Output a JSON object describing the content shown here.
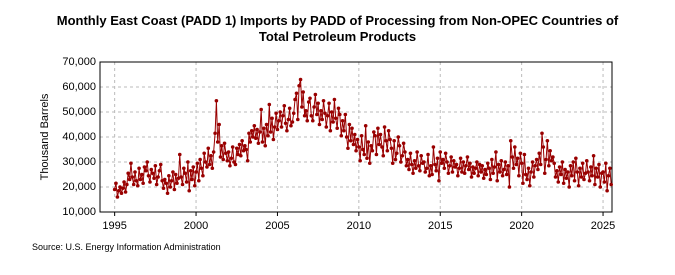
{
  "chart_data": {
    "type": "line",
    "title": "Monthly East Coast (PADD 1) Imports by PADD of Processing from Non-OPEC Countries of Total Petroleum Products",
    "y_label": "Thousand Barrels",
    "source": "Source: U.S. Energy Information Administration",
    "color": "#990000",
    "grid": true,
    "xlim": [
      1994.1,
      2025.55
    ],
    "xticks": [
      1995,
      2000,
      2005,
      2010,
      2015,
      2020,
      2025
    ],
    "ylim": [
      10000,
      70000
    ],
    "yticks": [
      {
        "value": 10000,
        "label": "10,000"
      },
      {
        "value": 20000,
        "label": "20,000"
      },
      {
        "value": 30000,
        "label": "30,000"
      },
      {
        "value": 40000,
        "label": "40,000"
      },
      {
        "value": 50000,
        "label": "50,000"
      },
      {
        "value": 60000,
        "label": "60,000"
      },
      {
        "value": 70000,
        "label": "70,000"
      }
    ],
    "x": [
      1995,
      1995.08,
      1995.17,
      1995.25,
      1995.33,
      1995.42,
      1995.5,
      1995.58,
      1995.67,
      1995.75,
      1995.83,
      1995.92,
      1996,
      1996.08,
      1996.17,
      1996.25,
      1996.33,
      1996.42,
      1996.5,
      1996.58,
      1996.67,
      1996.75,
      1996.83,
      1996.92,
      1997,
      1997.08,
      1997.17,
      1997.25,
      1997.33,
      1997.42,
      1997.5,
      1997.58,
      1997.67,
      1997.75,
      1997.83,
      1997.92,
      1998,
      1998.08,
      1998.17,
      1998.25,
      1998.33,
      1998.42,
      1998.5,
      1998.58,
      1998.67,
      1998.75,
      1998.83,
      1998.92,
      1999,
      1999.08,
      1999.17,
      1999.25,
      1999.33,
      1999.42,
      1999.5,
      1999.58,
      1999.67,
      1999.75,
      1999.83,
      1999.92,
      2000,
      2000.08,
      2000.17,
      2000.25,
      2000.33,
      2000.42,
      2000.5,
      2000.58,
      2000.67,
      2000.75,
      2000.83,
      2000.92,
      2001,
      2001.08,
      2001.17,
      2001.25,
      2001.33,
      2001.42,
      2001.5,
      2001.58,
      2001.67,
      2001.75,
      2001.83,
      2001.92,
      2002,
      2002.08,
      2002.17,
      2002.25,
      2002.33,
      2002.42,
      2002.5,
      2002.58,
      2002.67,
      2002.75,
      2002.83,
      2002.92,
      2003,
      2003.08,
      2003.17,
      2003.25,
      2003.33,
      2003.42,
      2003.5,
      2003.58,
      2003.67,
      2003.75,
      2003.83,
      2003.92,
      2004,
      2004.08,
      2004.17,
      2004.25,
      2004.33,
      2004.42,
      2004.5,
      2004.58,
      2004.67,
      2004.75,
      2004.83,
      2004.92,
      2005,
      2005.08,
      2005.17,
      2005.25,
      2005.33,
      2005.42,
      2005.5,
      2005.58,
      2005.67,
      2005.75,
      2005.83,
      2005.92,
      2006,
      2006.08,
      2006.17,
      2006.25,
      2006.33,
      2006.42,
      2006.5,
      2006.58,
      2006.67,
      2006.75,
      2006.83,
      2006.92,
      2007,
      2007.08,
      2007.17,
      2007.25,
      2007.33,
      2007.42,
      2007.5,
      2007.58,
      2007.67,
      2007.75,
      2007.83,
      2007.92,
      2008,
      2008.08,
      2008.17,
      2008.25,
      2008.33,
      2008.42,
      2008.5,
      2008.58,
      2008.67,
      2008.75,
      2008.83,
      2008.92,
      2009,
      2009.08,
      2009.17,
      2009.25,
      2009.33,
      2009.42,
      2009.5,
      2009.58,
      2009.67,
      2009.75,
      2009.83,
      2009.92,
      2010,
      2010.08,
      2010.17,
      2010.25,
      2010.33,
      2010.42,
      2010.5,
      2010.58,
      2010.67,
      2010.75,
      2010.83,
      2010.92,
      2011,
      2011.08,
      2011.17,
      2011.25,
      2011.33,
      2011.42,
      2011.5,
      2011.58,
      2011.67,
      2011.75,
      2011.83,
      2011.92,
      2012,
      2012.08,
      2012.17,
      2012.25,
      2012.33,
      2012.42,
      2012.5,
      2012.58,
      2012.67,
      2012.75,
      2012.83,
      2012.92,
      2013,
      2013.08,
      2013.17,
      2013.25,
      2013.33,
      2013.42,
      2013.5,
      2013.58,
      2013.67,
      2013.75,
      2013.83,
      2013.92,
      2014,
      2014.08,
      2014.17,
      2014.25,
      2014.33,
      2014.42,
      2014.5,
      2014.58,
      2014.67,
      2014.75,
      2014.83,
      2014.92,
      2015,
      2015.08,
      2015.17,
      2015.25,
      2015.33,
      2015.42,
      2015.5,
      2015.58,
      2015.67,
      2015.75,
      2015.83,
      2015.92,
      2016,
      2016.08,
      2016.17,
      2016.25,
      2016.33,
      2016.42,
      2016.5,
      2016.58,
      2016.67,
      2016.75,
      2016.83,
      2016.92,
      2017,
      2017.08,
      2017.17,
      2017.25,
      2017.33,
      2017.42,
      2017.5,
      2017.58,
      2017.67,
      2017.75,
      2017.83,
      2017.92,
      2018,
      2018.08,
      2018.17,
      2018.25,
      2018.33,
      2018.42,
      2018.5,
      2018.58,
      2018.67,
      2018.75,
      2018.83,
      2018.92,
      2019,
      2019.08,
      2019.17,
      2019.25,
      2019.33,
      2019.42,
      2019.5,
      2019.58,
      2019.67,
      2019.75,
      2019.83,
      2019.92,
      2020,
      2020.08,
      2020.17,
      2020.25,
      2020.33,
      2020.42,
      2020.5,
      2020.58,
      2020.67,
      2020.75,
      2020.83,
      2020.92,
      2021,
      2021.08,
      2021.17,
      2021.25,
      2021.33,
      2021.42,
      2021.5,
      2021.58,
      2021.67,
      2021.75,
      2021.83,
      2021.92,
      2022,
      2022.08,
      2022.17,
      2022.25,
      2022.33,
      2022.42,
      2022.5,
      2022.58,
      2022.67,
      2022.75,
      2022.83,
      2022.92,
      2023,
      2023.08,
      2023.17,
      2023.25,
      2023.33,
      2023.42,
      2023.5,
      2023.58,
      2023.67,
      2023.75,
      2023.83,
      2023.92,
      2024,
      2024.08,
      2024.17,
      2024.25,
      2024.33,
      2024.42,
      2024.5,
      2024.58,
      2024.67,
      2024.75,
      2024.83,
      2024.92,
      2025,
      2025.08,
      2025.17,
      2025.25,
      2025.33,
      2025.42,
      2025.5
    ],
    "values": [
      19000,
      21500,
      16000,
      18500,
      20000,
      17500,
      19500,
      22000,
      18000,
      21000,
      25500,
      23000,
      29500,
      24000,
      21000,
      26000,
      22500,
      20500,
      27500,
      23000,
      25000,
      21500,
      28000,
      26500,
      30000,
      24500,
      22000,
      27000,
      25500,
      23500,
      28500,
      21000,
      24000,
      26500,
      29000,
      22500,
      19500,
      23000,
      21500,
      17500,
      24500,
      20000,
      22500,
      26000,
      19000,
      25000,
      21500,
      23500,
      33000,
      24000,
      21000,
      27500,
      25500,
      22000,
      30000,
      18500,
      26500,
      23000,
      28000,
      20500,
      26000,
      29500,
      22500,
      31000,
      27500,
      24500,
      33500,
      30000,
      28000,
      35500,
      29000,
      32500,
      27500,
      34000,
      41500,
      54500,
      38000,
      45000,
      32000,
      36500,
      31000,
      37500,
      33500,
      30500,
      34000,
      28500,
      31500,
      36000,
      30000,
      29000,
      35500,
      33000,
      37000,
      32500,
      38500,
      34500,
      36500,
      35000,
      30500,
      41500,
      38000,
      42500,
      40000,
      44500,
      39500,
      43000,
      37500,
      42000,
      51000,
      38000,
      43500,
      36500,
      45000,
      40500,
      53000,
      42000,
      47500,
      39000,
      44000,
      49500,
      43000,
      46500,
      50000,
      44000,
      48500,
      52500,
      45500,
      42500,
      47000,
      51500,
      44500,
      46000,
      49500,
      55000,
      57500,
      47000,
      60500,
      63000,
      52000,
      58000,
      48500,
      50500,
      46500,
      54000,
      55500,
      48500,
      46500,
      52000,
      57000,
      49000,
      53500,
      45000,
      50500,
      47000,
      54500,
      49500,
      44000,
      48500,
      53500,
      42500,
      50000,
      46000,
      55000,
      47500,
      43500,
      51500,
      49000,
      40500,
      46500,
      42500,
      49000,
      40000,
      35500,
      45000,
      38500,
      43500,
      37000,
      41000,
      34500,
      39000,
      36000,
      30500,
      40500,
      35000,
      33000,
      44500,
      31500,
      38000,
      29500,
      36500,
      34500,
      42000,
      40500,
      33000,
      43500,
      37000,
      41000,
      36000,
      32500,
      44000,
      38500,
      34500,
      42500,
      39000,
      35500,
      29500,
      38500,
      31000,
      33500,
      40000,
      36500,
      30000,
      32500,
      37500,
      34000,
      28500,
      31000,
      27000,
      33500,
      29000,
      25500,
      30500,
      27500,
      34000,
      28500,
      26500,
      32500,
      29500,
      30000,
      26000,
      27500,
      33000,
      24500,
      28500,
      25000,
      36000,
      29000,
      26500,
      31500,
      22500,
      34000,
      29500,
      31000,
      27500,
      33500,
      30000,
      25500,
      28500,
      32000,
      26000,
      30500,
      28000,
      29000,
      24500,
      27500,
      31500,
      26000,
      30000,
      25500,
      28500,
      32000,
      27000,
      29500,
      24000,
      28000,
      25500,
      27500,
      30000,
      24500,
      29000,
      26000,
      28500,
      23500,
      27000,
      25000,
      29500,
      27500,
      23000,
      31000,
      25500,
      28000,
      34000,
      22500,
      29000,
      26000,
      30500,
      24500,
      27000,
      30000,
      25000,
      28500,
      20000,
      38500,
      32000,
      27500,
      36000,
      29000,
      31500,
      24500,
      33500,
      29500,
      21500,
      33000,
      25000,
      23000,
      27500,
      20500,
      26000,
      30000,
      24000,
      28500,
      31000,
      27000,
      33500,
      29000,
      41500,
      36000,
      25500,
      31000,
      38500,
      28500,
      34500,
      30500,
      32000,
      29500,
      24000,
      26500,
      22000,
      28000,
      25000,
      30000,
      21500,
      27000,
      23500,
      26000,
      20000,
      28500,
      24500,
      30000,
      22500,
      31500,
      26000,
      20500,
      27500,
      24000,
      29500,
      23000,
      25500,
      30500,
      26000,
      22500,
      28000,
      24500,
      32500,
      21000,
      27500,
      24000,
      29000,
      20000,
      25500,
      26000,
      22000,
      29500,
      18500,
      24500,
      27500,
      21000
    ]
  }
}
